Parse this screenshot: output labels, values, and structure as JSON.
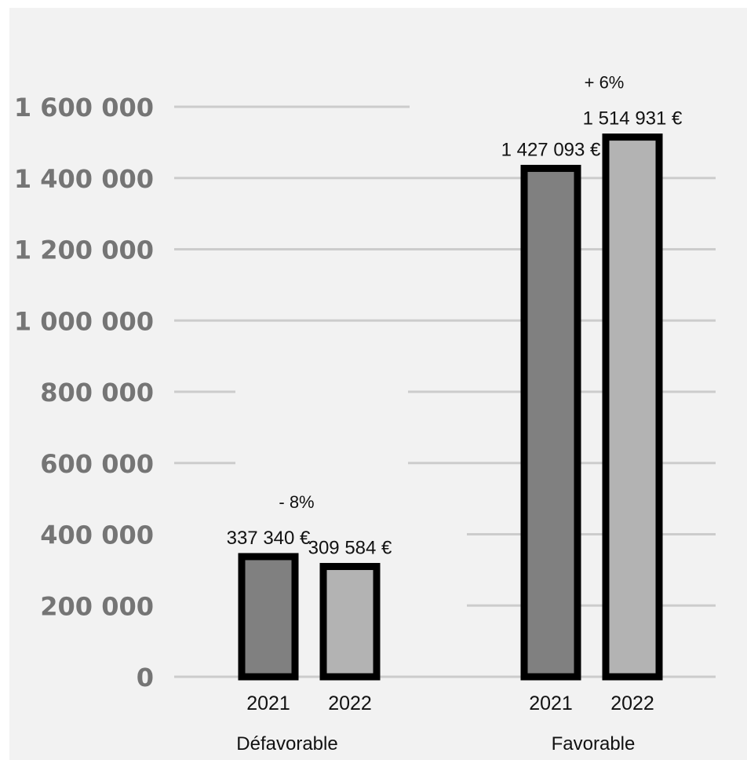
{
  "chart_data": {
    "type": "bar",
    "title": "",
    "xlabel": "",
    "ylabel": "",
    "ylim": [
      0,
      1600000
    ],
    "yticks": [
      "0",
      "200 000",
      "400 000",
      "600 000",
      "800 000",
      "1 000 000",
      "1 200 000",
      "1 400 000",
      "1 600 000"
    ],
    "grid": true,
    "groups": [
      {
        "name": "Défavorable",
        "change_label": "- 8%",
        "bars": [
          {
            "year": "2021",
            "value": 337340,
            "label": "337 340 €",
            "color": "#808080"
          },
          {
            "year": "2022",
            "value": 309584,
            "label": "309 584 €",
            "color": "#b3b3b3"
          }
        ]
      },
      {
        "name": "Favorable",
        "change_label": "+ 6%",
        "bars": [
          {
            "year": "2021",
            "value": 1427093,
            "label": "1 427 093 €",
            "color": "#808080"
          },
          {
            "year": "2022",
            "value": 1514931,
            "label": "1 514 931 €",
            "color": "#b3b3b3"
          }
        ]
      }
    ]
  }
}
